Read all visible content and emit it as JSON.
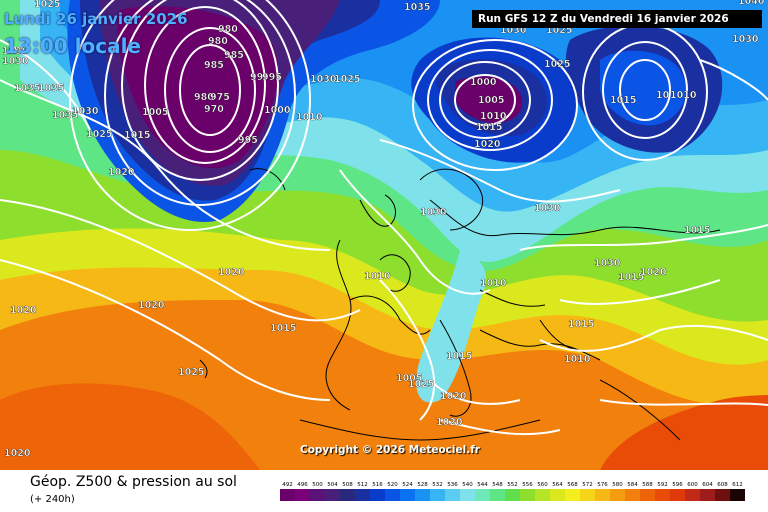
{
  "header": {
    "date_text": "Lundi 26 janvier 2026",
    "time_text": "13:00 locale",
    "run_text": "Run GFS 12 Z du Vendredi 16 janvier 2026"
  },
  "copyright": "Copyright © 2026 Meteociel.fr",
  "footer": {
    "title": "Géop. Z500 & pression au sol",
    "subtitle": "(+ 240h)"
  },
  "legend": {
    "values": [
      "492",
      "496",
      "500",
      "504",
      "508",
      "512",
      "516",
      "520",
      "524",
      "528",
      "532",
      "536",
      "540",
      "544",
      "548",
      "552",
      "556",
      "560",
      "564",
      "568",
      "572",
      "576",
      "580",
      "584",
      "588",
      "592",
      "596",
      "600",
      "604",
      "608",
      "612"
    ],
    "colors": [
      "#6a006a",
      "#7a007a",
      "#5a1478",
      "#48207a",
      "#28287e",
      "#1a2fa0",
      "#0a3ccc",
      "#0a55e6",
      "#0a72f0",
      "#1a92f4",
      "#36b4f4",
      "#5ccdf0",
      "#7fe2ea",
      "#6ee8b8",
      "#5ee686",
      "#60de4c",
      "#8ede2e",
      "#b6e426",
      "#dce81e",
      "#f4ee1e",
      "#f6d41a",
      "#f6b814",
      "#f49c10",
      "#f2800c",
      "#ee6408",
      "#e84c06",
      "#e03a0a",
      "#c22a18",
      "#9e1c1c",
      "#6e1010",
      "#1a0404"
    ]
  },
  "isobar_labels": [
    "1025",
    "1040",
    "1030",
    "1030",
    "1035",
    "1035",
    "1035",
    "1030",
    "1025",
    "1015",
    "1020",
    "1020",
    "1020",
    "1025",
    "1020",
    "985",
    "980",
    "980",
    "985",
    "99",
    "995",
    "980",
    "975",
    "970",
    "1005",
    "1000",
    "995",
    "1030",
    "1025",
    "1010",
    "1035",
    "1030",
    "1025",
    "1000",
    "1005",
    "1010",
    "1015",
    "1020",
    "1015",
    "10",
    "1010",
    "1030",
    "1030",
    "1030",
    "1025",
    "1020",
    "1015",
    "1015",
    "1020",
    "1030",
    "1010",
    "1015",
    "1015",
    "1010",
    "1005",
    "1025",
    "1020",
    "1020",
    "1015",
    "1010"
  ]
}
